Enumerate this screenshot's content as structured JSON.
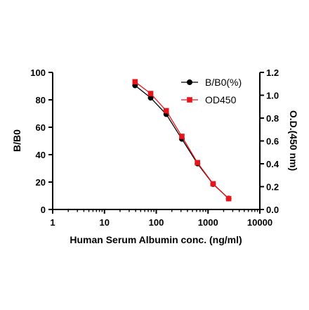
{
  "chart_data": {
    "type": "line",
    "xlabel": "Human Serum Albumin conc. (ng/ml)",
    "ylabel": "B/B0",
    "y2label": "O.D.(450 nm)",
    "xscale": "log",
    "xlim": [
      1,
      10000
    ],
    "ylim": [
      0,
      100
    ],
    "y2lim": [
      0,
      1.2
    ],
    "x_ticks": [
      "1",
      "10",
      "100",
      "1000",
      "10000"
    ],
    "y_ticks": [
      "0",
      "20",
      "40",
      "60",
      "80",
      "100"
    ],
    "y2_ticks": [
      "0.0",
      "0.2",
      "0.4",
      "0.6",
      "0.8",
      "1.0",
      "1.2"
    ],
    "grid": false,
    "legend_position": "top-right",
    "series": [
      {
        "name": "B/B0(%)",
        "axis": "left",
        "color": "#000000",
        "marker": "circle",
        "x": [
          39,
          78,
          156,
          312,
          625,
          1250,
          2500
        ],
        "y": [
          90.5,
          81.5,
          69.5,
          51.5,
          33.5,
          18.5,
          8
        ]
      },
      {
        "name": "OD450",
        "axis": "right",
        "color": "#e8141c",
        "marker": "square",
        "x": [
          39,
          78,
          156,
          312,
          625,
          1250,
          2500
        ],
        "y": [
          1.118,
          1.015,
          0.865,
          0.64,
          0.41,
          0.225,
          0.095
        ]
      }
    ]
  }
}
